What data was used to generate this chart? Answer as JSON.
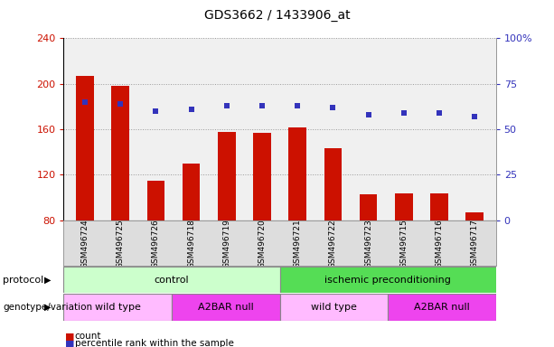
{
  "title": "GDS3662 / 1433906_at",
  "samples": [
    "GSM496724",
    "GSM496725",
    "GSM496726",
    "GSM496718",
    "GSM496719",
    "GSM496720",
    "GSM496721",
    "GSM496722",
    "GSM496723",
    "GSM496715",
    "GSM496716",
    "GSM496717"
  ],
  "counts": [
    207,
    198,
    115,
    130,
    158,
    157,
    162,
    143,
    103,
    104,
    104,
    87
  ],
  "percentiles": [
    65,
    64,
    60,
    61,
    63,
    63,
    63,
    62,
    58,
    59,
    59,
    57
  ],
  "ylim_left": [
    80,
    240
  ],
  "ylim_right": [
    0,
    100
  ],
  "yticks_left": [
    80,
    120,
    160,
    200,
    240
  ],
  "yticks_right": [
    0,
    25,
    50,
    75,
    100
  ],
  "bar_color": "#CC1100",
  "dot_color": "#3333BB",
  "protocol_control_color": "#CCFFCC",
  "protocol_ischemic_color": "#55DD55",
  "genotype_wildtype_color": "#FFBBFF",
  "genotype_a2bar_color": "#EE44EE",
  "label_protocol": "protocol",
  "label_genotype": "genotype/variation",
  "label_control": "control",
  "label_ischemic": "ischemic preconditioning",
  "label_wildtype": "wild type",
  "label_a2bar": "A2BAR null",
  "legend_count": "count",
  "legend_percentile": "percentile rank within the sample",
  "bar_width": 0.5,
  "tick_label_color_left": "#CC1100",
  "tick_label_color_right": "#3333BB",
  "plot_bg_color": "#F0F0F0",
  "xtick_bg_color": "#DDDDDD"
}
